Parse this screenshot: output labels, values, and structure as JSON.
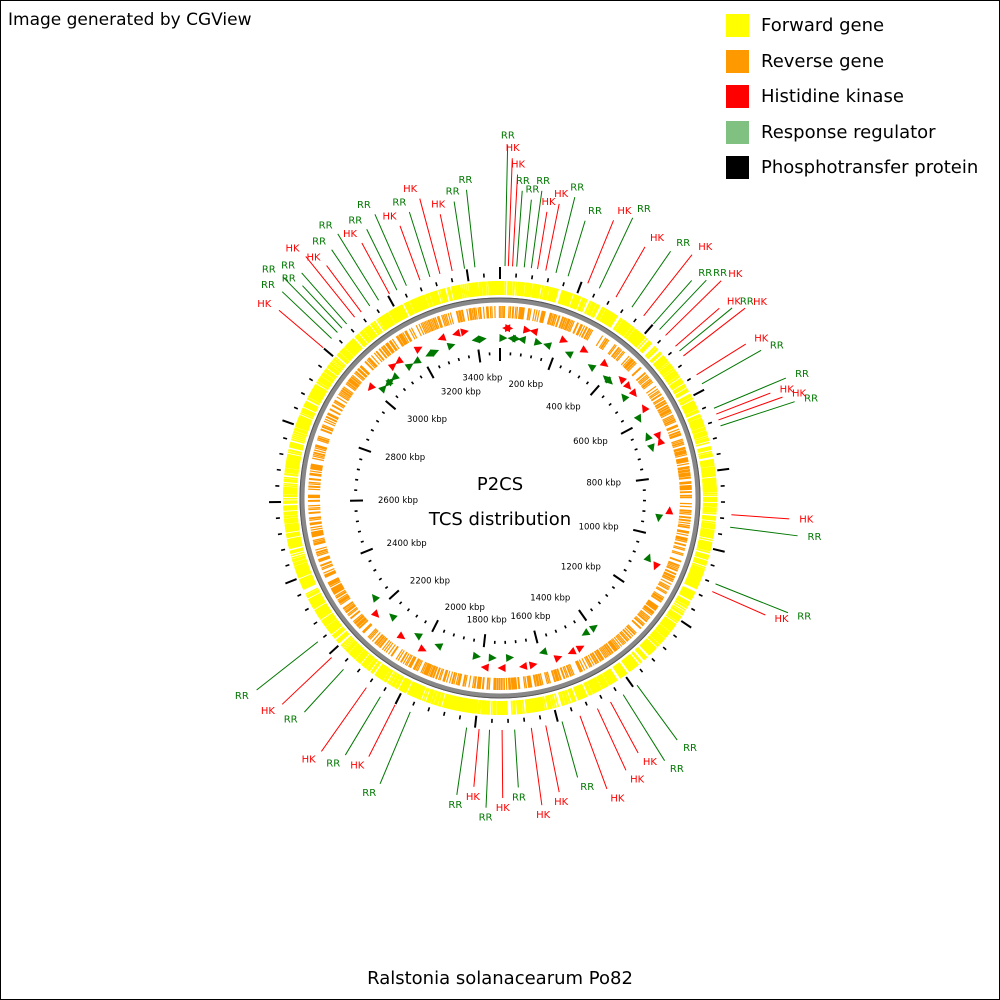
{
  "credit": "Image generated by CGView",
  "organism": "Ralstonia solanacearum Po82",
  "center": {
    "line1": "P2CS",
    "line2": "TCS distribution"
  },
  "colors": {
    "forward": "#ffff00",
    "reverse": "#ff9900",
    "hk": "#ff0000",
    "rr": "#007700",
    "rr_legend": "#80c080",
    "phospho": "#000000",
    "backbone": "#888888"
  },
  "legend": [
    {
      "label": "Forward gene",
      "color": "#ffff00"
    },
    {
      "label": "Reverse gene",
      "color": "#ff9900"
    },
    {
      "label": "Histidine kinase",
      "color": "#ff0000"
    },
    {
      "label": "Response regulator",
      "color": "#80c080"
    },
    {
      "label": "Phosphotransfer protein",
      "color": "#000000"
    }
  ],
  "genome": {
    "length_kbp": 3480,
    "tick_labels": [
      "200 kbp",
      "400 kbp",
      "600 kbp",
      "800 kbp",
      "1000 kbp",
      "1200 kbp",
      "1400 kbp",
      "1600 kbp",
      "1800 kbp",
      "2000 kbp",
      "2200 kbp",
      "2400 kbp",
      "2600 kbp",
      "2800 kbp",
      "3000 kbp",
      "3200 kbp",
      "3400 kbp"
    ],
    "tick_values_kbp": [
      200,
      400,
      600,
      800,
      1000,
      1200,
      1400,
      1600,
      1800,
      2000,
      2200,
      2400,
      2600,
      2800,
      3000,
      3200,
      3400
    ]
  },
  "features": [
    {
      "kbp": 12,
      "type": "RR"
    },
    {
      "kbp": 20,
      "type": "HK"
    },
    {
      "kbp": 30,
      "type": "HK"
    },
    {
      "kbp": 40,
      "type": "RR"
    },
    {
      "kbp": 58,
      "type": "RR"
    },
    {
      "kbp": 75,
      "type": "RR"
    },
    {
      "kbp": 90,
      "type": "HK"
    },
    {
      "kbp": 110,
      "type": "HK"
    },
    {
      "kbp": 135,
      "type": "RR"
    },
    {
      "kbp": 165,
      "type": "RR"
    },
    {
      "kbp": 215,
      "type": "HK"
    },
    {
      "kbp": 245,
      "type": "RR"
    },
    {
      "kbp": 290,
      "type": "HK"
    },
    {
      "kbp": 335,
      "type": "RR"
    },
    {
      "kbp": 370,
      "type": "HK"
    },
    {
      "kbp": 400,
      "type": "RR"
    },
    {
      "kbp": 420,
      "type": "RR"
    },
    {
      "kbp": 440,
      "type": "HK"
    },
    {
      "kbp": 475,
      "type": "HK"
    },
    {
      "kbp": 490,
      "type": "RR"
    },
    {
      "kbp": 505,
      "type": "HK"
    },
    {
      "kbp": 560,
      "type": "HK"
    },
    {
      "kbp": 585,
      "type": "RR"
    },
    {
      "kbp": 650,
      "type": "RR"
    },
    {
      "kbp": 665,
      "type": "HK"
    },
    {
      "kbp": 680,
      "type": "HK"
    },
    {
      "kbp": 695,
      "type": "RR"
    },
    {
      "kbp": 910,
      "type": "HK"
    },
    {
      "kbp": 940,
      "type": "RR"
    },
    {
      "kbp": 1080,
      "type": "RR"
    },
    {
      "kbp": 1100,
      "type": "HK"
    },
    {
      "kbp": 1390,
      "type": "RR"
    },
    {
      "kbp": 1430,
      "type": "RR"
    },
    {
      "kbp": 1465,
      "type": "HK"
    },
    {
      "kbp": 1500,
      "type": "HK"
    },
    {
      "kbp": 1545,
      "type": "HK"
    },
    {
      "kbp": 1590,
      "type": "RR"
    },
    {
      "kbp": 1630,
      "type": "HK"
    },
    {
      "kbp": 1665,
      "type": "HK"
    },
    {
      "kbp": 1705,
      "type": "RR"
    },
    {
      "kbp": 1735,
      "type": "HK"
    },
    {
      "kbp": 1765,
      "type": "RR"
    },
    {
      "kbp": 1790,
      "type": "HK"
    },
    {
      "kbp": 1820,
      "type": "RR"
    },
    {
      "kbp": 1960,
      "type": "RR"
    },
    {
      "kbp": 2000,
      "type": "HK"
    },
    {
      "kbp": 2040,
      "type": "RR"
    },
    {
      "kbp": 2080,
      "type": "HK"
    },
    {
      "kbp": 2150,
      "type": "RR"
    },
    {
      "kbp": 2190,
      "type": "HK"
    },
    {
      "kbp": 2240,
      "type": "RR"
    },
    {
      "kbp": 3000,
      "type": "HK"
    },
    {
      "kbp": 3030,
      "type": "RR"
    },
    {
      "kbp": 3050,
      "type": "RR"
    },
    {
      "kbp": 3065,
      "type": "RR"
    },
    {
      "kbp": 3080,
      "type": "RR"
    },
    {
      "kbp": 3105,
      "type": "HK"
    },
    {
      "kbp": 3125,
      "type": "HK"
    },
    {
      "kbp": 3150,
      "type": "RR"
    },
    {
      "kbp": 3175,
      "type": "RR"
    },
    {
      "kbp": 3205,
      "type": "HK"
    },
    {
      "kbp": 3225,
      "type": "RR"
    },
    {
      "kbp": 3250,
      "type": "RR"
    },
    {
      "kbp": 3285,
      "type": "HK"
    },
    {
      "kbp": 3310,
      "type": "RR"
    },
    {
      "kbp": 3335,
      "type": "HK"
    },
    {
      "kbp": 3365,
      "type": "HK"
    },
    {
      "kbp": 3395,
      "type": "RR"
    },
    {
      "kbp": 3420,
      "type": "RR"
    }
  ]
}
